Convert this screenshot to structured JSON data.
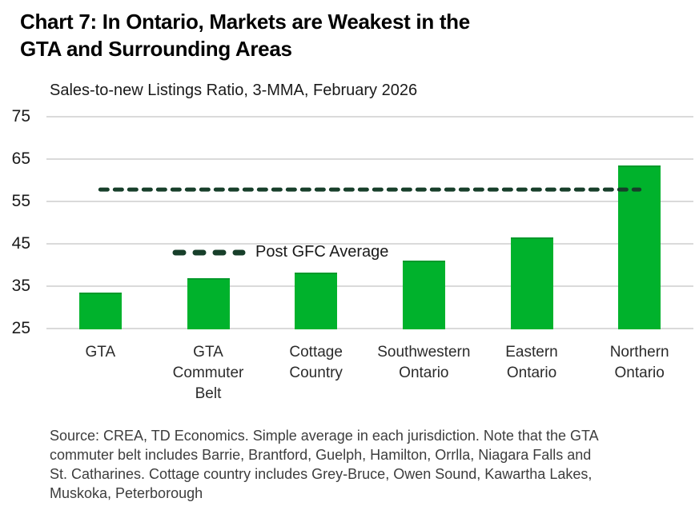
{
  "title": {
    "lines": [
      "Chart 7: In Ontario, Markets are Weakest in the",
      "GTA and Surrounding Areas"
    ]
  },
  "subtitle": "Sales-to-new Listings Ratio, 3-MMA, February 2026",
  "chart_data": {
    "type": "bar",
    "title": "Chart 7: In Ontario, Markets are Weakest in the GTA and Surrounding Areas",
    "subtitle": "Sales-to-new Listings Ratio, 3-MMA, February 2026",
    "categories": [
      "GTA",
      "GTA\nCommuter\nBelt",
      "Cottage\nCountry",
      "Southwestern\nOntario",
      "Eastern\nOntario",
      "Northern\nOntario"
    ],
    "values": [
      33.4,
      36.9,
      38.3,
      41.0,
      46.6,
      63.5
    ],
    "xlabel": "",
    "ylabel": "",
    "ylim": [
      25,
      75
    ],
    "yticks": [
      25,
      35,
      45,
      55,
      65,
      75
    ],
    "grid": true,
    "legend_position": "top-left-inside",
    "reference_line": {
      "label": "Post GFC Average",
      "value": 57.8,
      "style": "dashed"
    },
    "colors": {
      "bar": "#00B22C",
      "bar_top": "#00992A",
      "reference": "#173F2A",
      "gridline": "#DADADA",
      "text": "#1A1A1A"
    }
  },
  "footnote": {
    "lines": [
      "Source: CREA, TD Economics. Simple average in each jurisdiction. Note that the GTA",
      "commuter belt includes Barrie, Brantford, Guelph, Hamilton, Orrlla, Niagara Falls and",
      "St. Catharines. Cottage country includes Grey-Bruce, Owen Sound, Kawartha Lakes,",
      "Muskoka, Peterborough"
    ]
  }
}
